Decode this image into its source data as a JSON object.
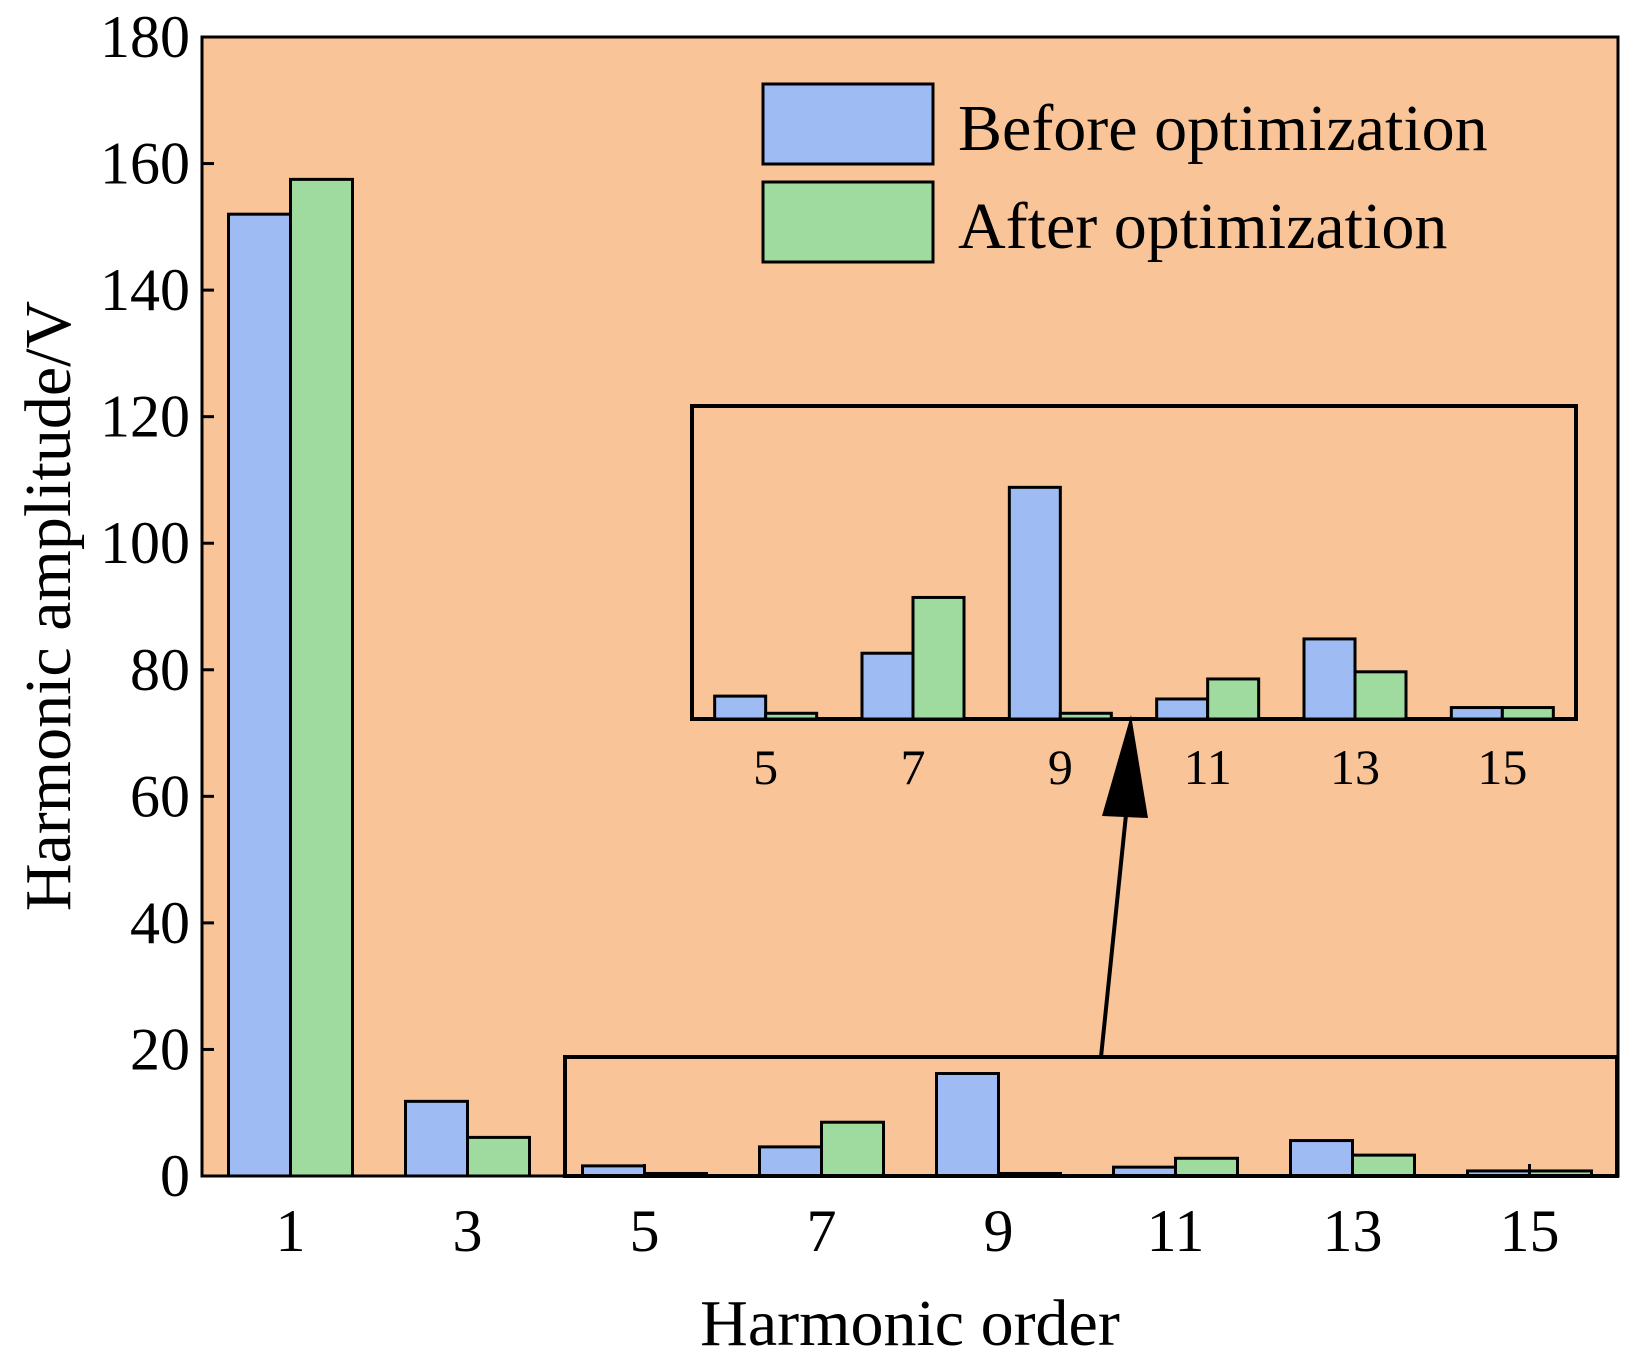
{
  "chart_data": {
    "type": "bar",
    "xlabel": "Harmonic order",
    "ylabel": "Harmonic amplitude/V",
    "ylim": [
      0,
      180
    ],
    "yticks": [
      0,
      20,
      40,
      60,
      80,
      100,
      120,
      140,
      160,
      180
    ],
    "categories": [
      "1",
      "3",
      "5",
      "7",
      "9",
      "11",
      "13",
      "15"
    ],
    "series": [
      {
        "name": "Before optimization",
        "color": "#9fbbf3",
        "values": [
          152,
          11.8,
          1.6,
          4.6,
          16.2,
          1.4,
          5.6,
          0.8
        ]
      },
      {
        "name": "After optimization",
        "color": "#9fdb9f",
        "values": [
          157.5,
          6.1,
          0.4,
          8.5,
          0.4,
          2.8,
          3.3,
          0.8
        ]
      }
    ],
    "background_color": "#f9c598",
    "legend_position": "top-right",
    "grid": false,
    "inset": {
      "categories": [
        "5",
        "7",
        "9",
        "11",
        "13",
        "15"
      ],
      "ylim": [
        0,
        18
      ],
      "note": "zoomed view of orders 5-15 (region 0-18 V)"
    }
  }
}
